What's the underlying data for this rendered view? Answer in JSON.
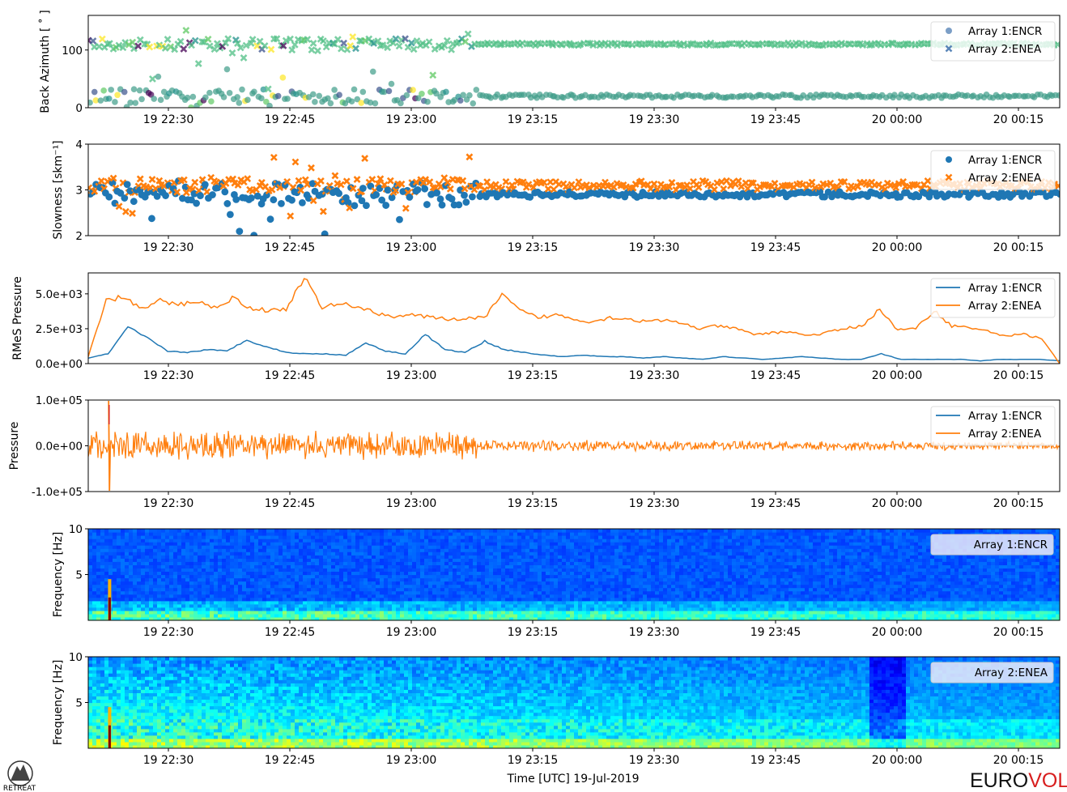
{
  "figure": {
    "xlabel": "Time [UTC] 19-Jul-2019",
    "x_ticks": [
      "19 22:30",
      "19 22:45",
      "19 23:00",
      "19 23:15",
      "19 23:30",
      "19 23:45",
      "20 00:00",
      "20 00:15"
    ],
    "logo_left": "RETREAT",
    "logo_right_a": "EURO",
    "logo_right_b": "VOLC",
    "colors": {
      "array1": "#1f77b4",
      "array2": "#ff7f0e",
      "logo_red": "#d81e1e"
    }
  },
  "chart_data": [
    {
      "type": "scatter",
      "ylabel": "Back Azimuth [ ˚ ]",
      "ylim": [
        0,
        160
      ],
      "yticks": [
        "0",
        "100"
      ],
      "legend": "top-right",
      "series": [
        {
          "name": "Array 1:ENCR",
          "marker": "circle",
          "typical_value": 20
        },
        {
          "name": "Array 2:ENEA",
          "marker": "x",
          "typical_value": 110
        }
      ]
    },
    {
      "type": "scatter",
      "ylabel": "Slowness [skm⁻¹]",
      "ylim": [
        2,
        4
      ],
      "yticks": [
        "2",
        "3",
        "4"
      ],
      "legend": "top-right",
      "series": [
        {
          "name": "Array 1:ENCR",
          "marker": "circle",
          "typical_value": 2.9
        },
        {
          "name": "Array 2:ENEA",
          "marker": "x",
          "typical_value": 3.1
        }
      ]
    },
    {
      "type": "line",
      "ylabel": "RMeS Pressure",
      "ylim": [
        0,
        6500
      ],
      "yticks": [
        "0.0e+00",
        "2.5e+03",
        "5.0e+03"
      ],
      "legend": "top-right",
      "series": [
        {
          "name": "Array 1:ENCR",
          "values": [
            400,
            700,
            2600,
            1800,
            900,
            800,
            1000,
            900,
            1700,
            1200,
            800,
            700,
            700,
            600,
            1500,
            900,
            700,
            2100,
            1000,
            800,
            1600,
            1000,
            800,
            600,
            500,
            600,
            500,
            500,
            400,
            500,
            400,
            300,
            500,
            400,
            300,
            400,
            500,
            400,
            300,
            300,
            700,
            300,
            300,
            300,
            300,
            200,
            300,
            300,
            300,
            200
          ]
        },
        {
          "name": "Array 2:ENEA",
          "values": [
            500,
            4500,
            4800,
            3900,
            4500,
            4200,
            4500,
            4000,
            4700,
            4000,
            3800,
            3900,
            6200,
            4000,
            4300,
            4100,
            3600,
            3400,
            3500,
            3300,
            3200,
            3200,
            3300,
            4900,
            3800,
            3300,
            3500,
            3200,
            3000,
            3300,
            3200,
            3000,
            3100,
            2900,
            2500,
            2700,
            2500,
            2100,
            2200,
            2300,
            2000,
            2200,
            2500,
            2700,
            3900,
            2400,
            2500,
            3800,
            2700,
            2600,
            2300,
            2000,
            2100,
            1800,
            0
          ]
        }
      ]
    },
    {
      "type": "line",
      "ylabel": "Pressure",
      "ylim": [
        -100000,
        100000
      ],
      "yticks": [
        "-1.0e+05",
        "0.0e+00",
        "1.0e+05"
      ],
      "legend": "top-right",
      "series": [
        {
          "name": "Array 1:ENCR"
        },
        {
          "name": "Array 2:ENEA"
        }
      ]
    },
    {
      "type": "heatmap",
      "ylabel": "Frequency [Hz]",
      "ylim": [
        0,
        10
      ],
      "yticks": [
        "5",
        "10"
      ],
      "label": "Array 1:ENCR"
    },
    {
      "type": "heatmap",
      "ylabel": "Frequency [Hz]",
      "ylim": [
        0,
        10
      ],
      "yticks": [
        "5",
        "10"
      ],
      "label": "Array 2:ENEA"
    }
  ]
}
